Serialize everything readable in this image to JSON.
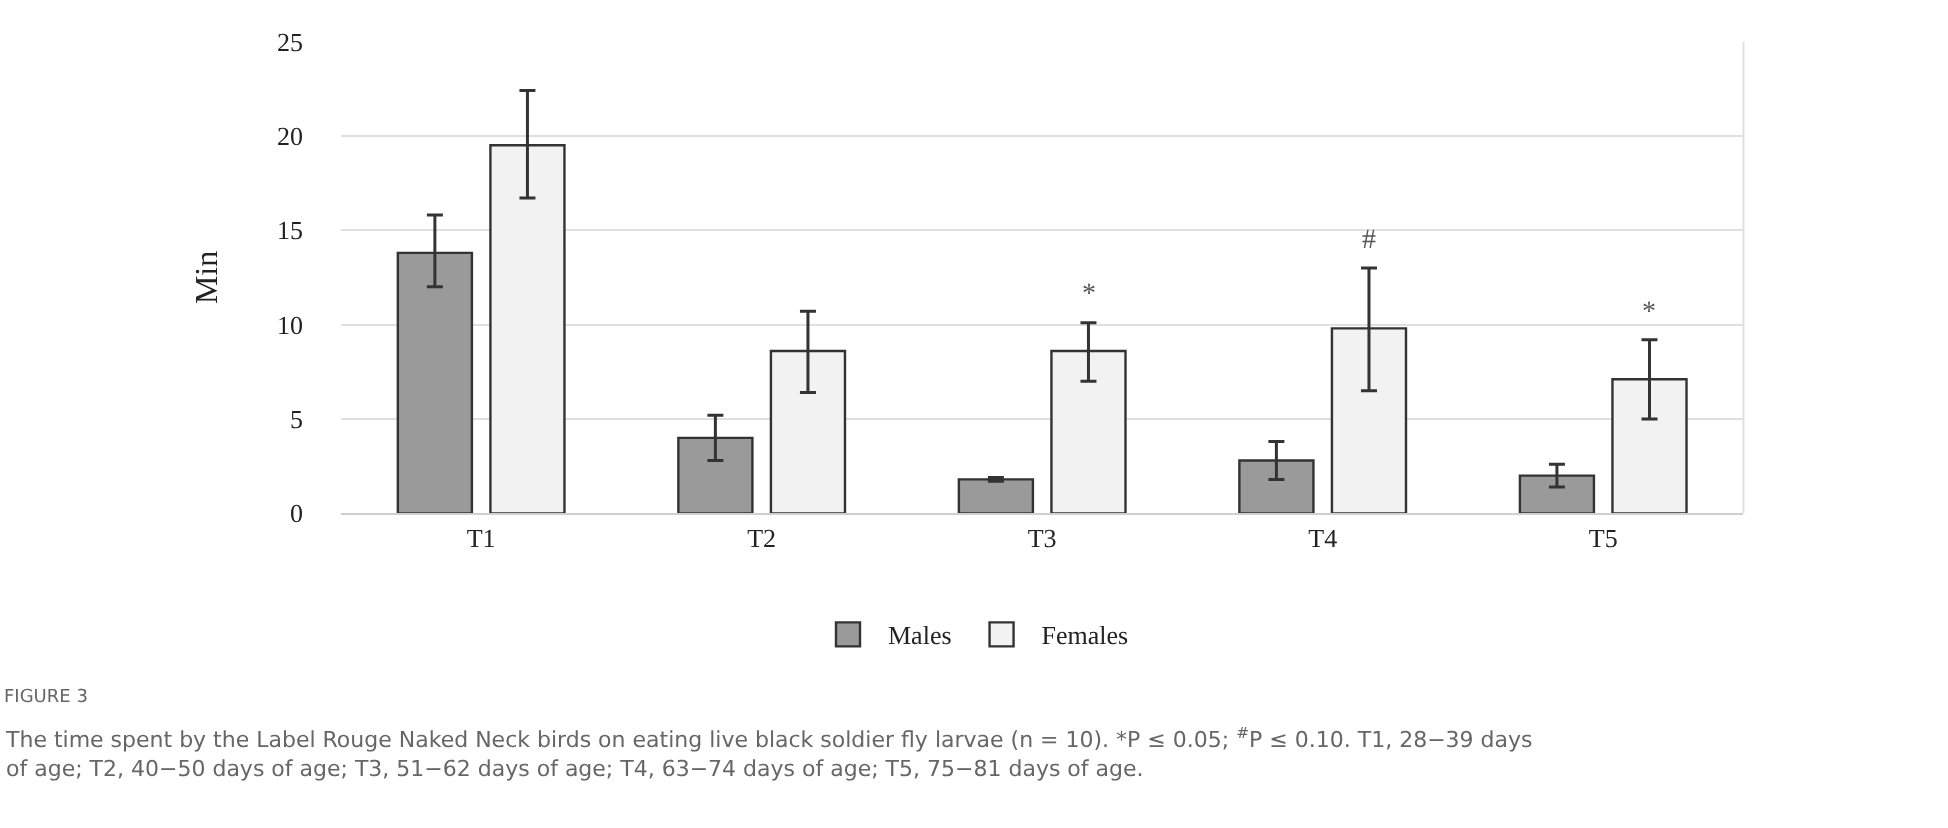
{
  "chart_data": {
    "type": "bar",
    "ylabel": "Min",
    "categories": [
      "T1",
      "T2",
      "T3",
      "T4",
      "T5"
    ],
    "series": [
      {
        "name": "Males",
        "color": "#9a9a9a",
        "values": [
          13.8,
          4.0,
          1.8,
          2.8,
          2.0
        ],
        "errors": [
          [
            12.0,
            15.8
          ],
          [
            2.8,
            5.2
          ],
          [
            1.7,
            1.9
          ],
          [
            1.8,
            3.8
          ],
          [
            1.4,
            2.6
          ]
        ]
      },
      {
        "name": "Females",
        "color": "#f2f2f2",
        "values": [
          19.5,
          8.6,
          8.6,
          9.8,
          7.1
        ],
        "errors": [
          [
            16.7,
            22.4
          ],
          [
            6.4,
            10.7
          ],
          [
            7.0,
            10.1
          ],
          [
            6.5,
            13.0
          ],
          [
            5.0,
            9.2
          ]
        ]
      }
    ],
    "ylim": [
      0,
      25
    ],
    "yticks": [
      0,
      5,
      10,
      15,
      20,
      25
    ],
    "grid": "y",
    "legend": "bottom",
    "annotations": [
      {
        "text": "*",
        "x": "T3",
        "y": 8.6
      },
      {
        "text": "#",
        "x": "T4",
        "y": 9.8
      },
      {
        "text": "*",
        "x": "T5",
        "y": 7.1
      },
      "FIGURE 3",
      "The time spent by the Label Rouge Naked Neck birds on eating live black soldier fly larvae (n = 10). *P ≤ 0.05; $^{#}$P ≤ 0.10. T1, 28−39 days of age; T2, 40−50 days of age; T3, 51−62 days of age; T4, 63−74 days of age; T5, 75−81 days of age."
    ]
  }
}
